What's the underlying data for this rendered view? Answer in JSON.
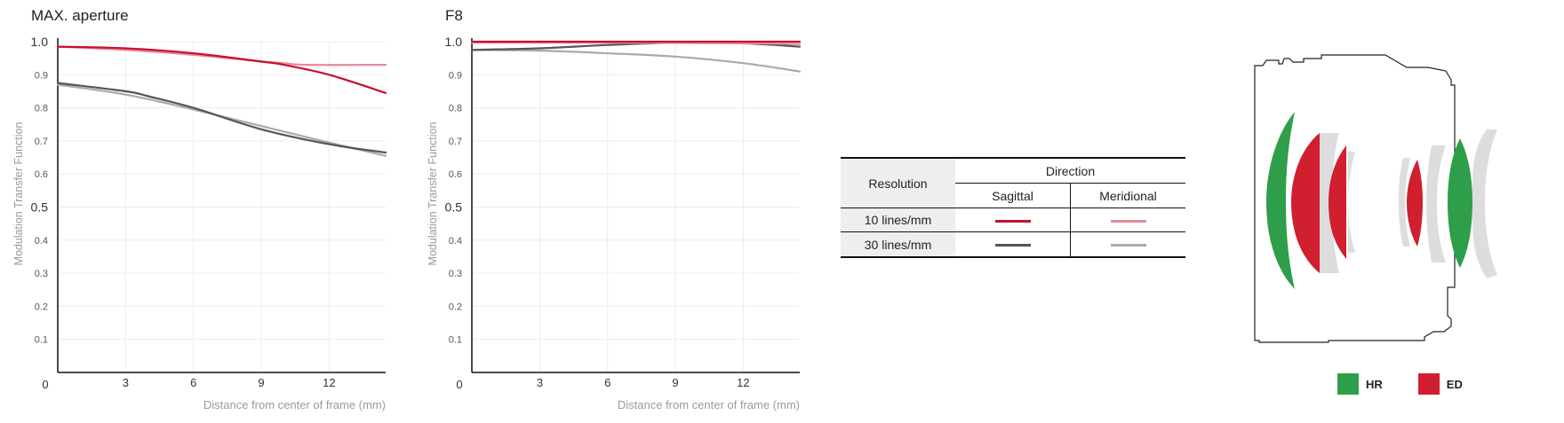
{
  "chart_data": [
    {
      "type": "line",
      "title": "MAX. aperture",
      "xlabel": "Distance from center of frame (mm)",
      "ylabel": "Modulation Transfer Function",
      "xlim": [
        0,
        14.5
      ],
      "ylim": [
        0,
        1.0
      ],
      "x_ticks": [
        "0",
        "3",
        "6",
        "9",
        "12"
      ],
      "y_ticks": [
        "1.0",
        "0.9",
        "0.8",
        "0.7",
        "0.6",
        "0.5",
        "0.4",
        "0.3",
        "0.2",
        "0.1"
      ],
      "grid": true,
      "series": [
        {
          "key": "s10",
          "color": "#c8102e",
          "x": [
            0,
            3,
            6,
            9,
            10,
            12,
            14.5
          ],
          "values": [
            0.985,
            0.98,
            0.965,
            0.94,
            0.93,
            0.9,
            0.845
          ]
        },
        {
          "key": "m10",
          "color": "#e8899b",
          "x": [
            0,
            3,
            6,
            9,
            10,
            11,
            14.5
          ],
          "values": [
            0.985,
            0.975,
            0.96,
            0.94,
            0.935,
            0.93,
            0.93
          ]
        },
        {
          "key": "s30",
          "color": "#555555",
          "x": [
            0,
            3,
            4,
            6,
            9,
            12,
            14.5
          ],
          "values": [
            0.875,
            0.85,
            0.835,
            0.8,
            0.735,
            0.69,
            0.665
          ]
        },
        {
          "key": "m30",
          "color": "#aaaaaa",
          "x": [
            0,
            3,
            6,
            9,
            12,
            14.5
          ],
          "values": [
            0.87,
            0.84,
            0.795,
            0.745,
            0.695,
            0.655
          ]
        }
      ]
    },
    {
      "type": "line",
      "title": "F8",
      "xlabel": "Distance from center of frame (mm)",
      "ylabel": "Modulation Transfer Function",
      "xlim": [
        0,
        14.5
      ],
      "ylim": [
        0,
        1.0
      ],
      "x_ticks": [
        "0",
        "3",
        "6",
        "9",
        "12"
      ],
      "y_ticks": [
        "1.0",
        "0.9",
        "0.8",
        "0.7",
        "0.6",
        "0.5",
        "0.4",
        "0.3",
        "0.2",
        "0.1"
      ],
      "grid": true,
      "series": [
        {
          "key": "s10",
          "color": "#c8102e",
          "x": [
            0,
            3,
            6,
            9,
            12,
            14.5
          ],
          "values": [
            1.0,
            1.0,
            1.0,
            1.0,
            1.0,
            1.0
          ]
        },
        {
          "key": "m10",
          "color": "#e8899b",
          "x": [
            0,
            3,
            6,
            9,
            12,
            14.5
          ],
          "values": [
            0.997,
            0.997,
            0.997,
            0.996,
            0.995,
            0.993
          ]
        },
        {
          "key": "s30",
          "color": "#555555",
          "x": [
            0,
            3,
            6,
            9,
            12,
            14.5
          ],
          "values": [
            0.975,
            0.98,
            0.99,
            0.997,
            0.995,
            0.985
          ]
        },
        {
          "key": "m30",
          "color": "#aaaaaa",
          "x": [
            0,
            3,
            6,
            9,
            12,
            14.5
          ],
          "values": [
            0.975,
            0.973,
            0.965,
            0.955,
            0.935,
            0.91
          ]
        }
      ]
    }
  ],
  "legend_table": {
    "resolution_header": "Resolution",
    "direction_header": "Direction",
    "sagittal": "Sagittal",
    "meridional": "Meridional",
    "rows": [
      {
        "label": "10 lines/mm",
        "sagittal_color": "#c8102e",
        "meridional_color": "#e8899b"
      },
      {
        "label": "30 lines/mm",
        "sagittal_color": "#555555",
        "meridional_color": "#aaaaaa"
      }
    ]
  },
  "lens_legend": {
    "hr_label": "HR",
    "hr_color": "#2e9e4a",
    "ed_label": "ED",
    "ed_color": "#d01f2e"
  }
}
